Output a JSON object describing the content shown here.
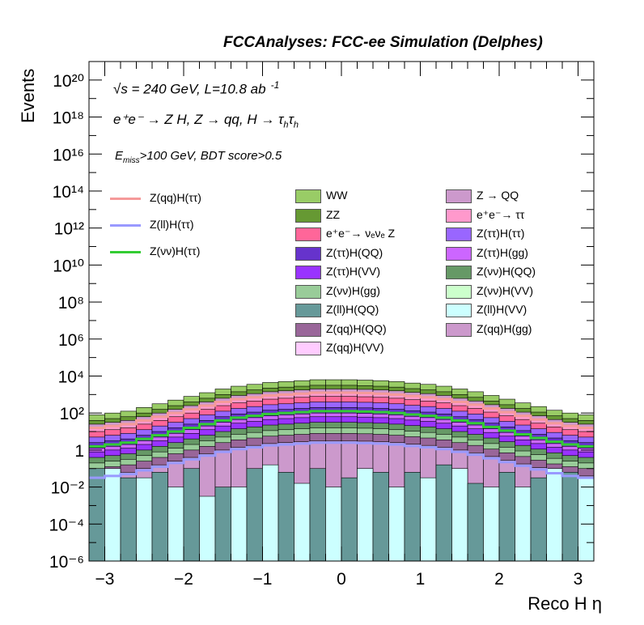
{
  "header": {
    "title": "FCCAnalyses: FCC-ee Simulation (Delphes)"
  },
  "annotations": {
    "line1": "√s = 240 GeV, L=10.8 ab",
    "line1_sup": "-1",
    "line2": "e⁺e⁻ → Z H, Z → qq, H → τ",
    "line2_sub": "h",
    "line2_tail": "τ",
    "line2_sub2": "h",
    "line3_e": "E",
    "line3_sub": "miss",
    "line3_rest": ">100 GeV, BDT score>0.5"
  },
  "colors": {
    "signal_qq": "#f59a9a",
    "signal_ll": "#9999ff",
    "signal_nn": "#33cc33"
  },
  "chart_data": {
    "type": "histogram",
    "title": "FCCAnalyses: FCC-ee Simulation (Delphes)",
    "xlabel": "Reco H η",
    "ylabel": "Events",
    "xlim": [
      -3.2,
      3.2
    ],
    "ylim": [
      1e-06,
      1e+21
    ],
    "log_y": true,
    "nbins": 32,
    "x_ticks": [
      "−3",
      "−2",
      "−1",
      "0",
      "1",
      "2",
      "3"
    ],
    "y_ticks": [
      "10⁻⁶",
      "10⁻⁴",
      "10⁻²",
      "1",
      "10²",
      "10⁴",
      "10⁶",
      "10⁸",
      "10¹⁰",
      "10¹²",
      "10¹⁴",
      "10¹⁶",
      "10¹⁸",
      "10²⁰"
    ],
    "stack_profile_log10": [
      1.9,
      2.0,
      2.1,
      2.3,
      2.5,
      2.7,
      2.9,
      3.1,
      3.3,
      3.45,
      3.55,
      3.65,
      3.7,
      3.75,
      3.8,
      3.8,
      3.8,
      3.78,
      3.75,
      3.7,
      3.62,
      3.55,
      3.45,
      3.3,
      3.15,
      2.95,
      2.75,
      2.55,
      2.35,
      2.15,
      2.0,
      1.9
    ],
    "stack_offsets_log10": [
      {
        "name": "WW",
        "offset": 0.0,
        "color": "#99cc66"
      },
      {
        "name": "ZZ",
        "offset": -0.3,
        "color": "#669933"
      },
      {
        "name": "Z → QQ",
        "offset": -0.5,
        "color": "#cc99cc"
      },
      {
        "name": "e⁺e⁻→ ττ",
        "offset": -0.7,
        "color": "#ff99cc"
      },
      {
        "name": "e⁺e⁻→ νₑνₑ Z",
        "offset": -0.9,
        "color": "#ff6699"
      },
      {
        "name": "Z(ττ)H(ττ)",
        "offset": -1.2,
        "color": "#9966ff"
      },
      {
        "name": "Z(ττ)H(QQ)",
        "offset": -1.5,
        "color": "#6633cc"
      },
      {
        "name": "Z(ττ)H(gg)",
        "offset": -1.8,
        "color": "#cc66ff"
      },
      {
        "name": "Z(ττ)H(VV)",
        "offset": -2.0,
        "color": "#9933ff"
      },
      {
        "name": "Z(νν)H(QQ)",
        "offset": -2.3,
        "color": "#669966"
      },
      {
        "name": "Z(νν)H(gg)",
        "offset": -2.6,
        "color": "#99cc99"
      },
      {
        "name": "Z(qq)H(QQ)",
        "offset": -2.9,
        "color": "#996699"
      },
      {
        "name": "Z(qq)H(gg)",
        "offset": -3.3,
        "color": "#cc99cc"
      }
    ],
    "low_bins_log10": [
      -1.0,
      -1.0,
      -1.5,
      -1.5,
      -1.2,
      -2.0,
      -1.0,
      -2.5,
      -2.0,
      -2.0,
      -1.0,
      -0.8,
      -1.2,
      -1.8,
      -1.0,
      -2.0,
      -1.5,
      -1.0,
      -1.2,
      -2.0,
      -1.2,
      -1.5,
      -0.8,
      -1.0,
      -1.8,
      -2.0,
      -1.2,
      -2.0,
      -1.5,
      -1.0,
      -1.2,
      -1.5
    ],
    "signals": [
      {
        "name": "Z(qq)H(ττ)",
        "color": "#f59a9a",
        "offset_log10": -0.7
      },
      {
        "name": "Z(ll)H(ττ)",
        "color": "#9999ff",
        "offset_log10": -3.4
      },
      {
        "name": "Z(νν)H(ττ)",
        "color": "#33cc33",
        "offset_log10": -1.7
      }
    ],
    "legend_signals": [
      "Z(qq)H(ττ)",
      "Z(ll)H(ττ)",
      "Z(νν)H(ττ)"
    ],
    "legend_bkg_col1": [
      {
        "name": "WW",
        "color": "#99cc66"
      },
      {
        "name": "ZZ",
        "color": "#669933"
      },
      {
        "name": "e⁺e⁻→ νₑνₑ Z",
        "color": "#ff6699"
      },
      {
        "name": "Z(ττ)H(QQ)",
        "color": "#6633cc"
      },
      {
        "name": "Z(ττ)H(VV)",
        "color": "#9933ff"
      },
      {
        "name": "Z(νν)H(gg)",
        "color": "#99cc99"
      },
      {
        "name": "Z(ll)H(QQ)",
        "color": "#669999"
      },
      {
        "name": "Z(qq)H(QQ)",
        "color": "#996699"
      },
      {
        "name": "Z(qq)H(VV)",
        "color": "#ffccff"
      }
    ],
    "legend_bkg_col2": [
      {
        "name": "Z → QQ",
        "color": "#cc99cc"
      },
      {
        "name": "e⁺e⁻→ ττ",
        "color": "#ff99cc"
      },
      {
        "name": "Z(ττ)H(ττ)",
        "color": "#9966ff"
      },
      {
        "name": "Z(ττ)H(gg)",
        "color": "#cc66ff"
      },
      {
        "name": "Z(νν)H(QQ)",
        "color": "#669966"
      },
      {
        "name": "Z(νν)H(VV)",
        "color": "#ccffcc"
      },
      {
        "name": "Z(ll)H(VV)",
        "color": "#ccffff"
      },
      {
        "name": "Z(qq)H(gg)",
        "color": "#cc99cc"
      }
    ]
  }
}
